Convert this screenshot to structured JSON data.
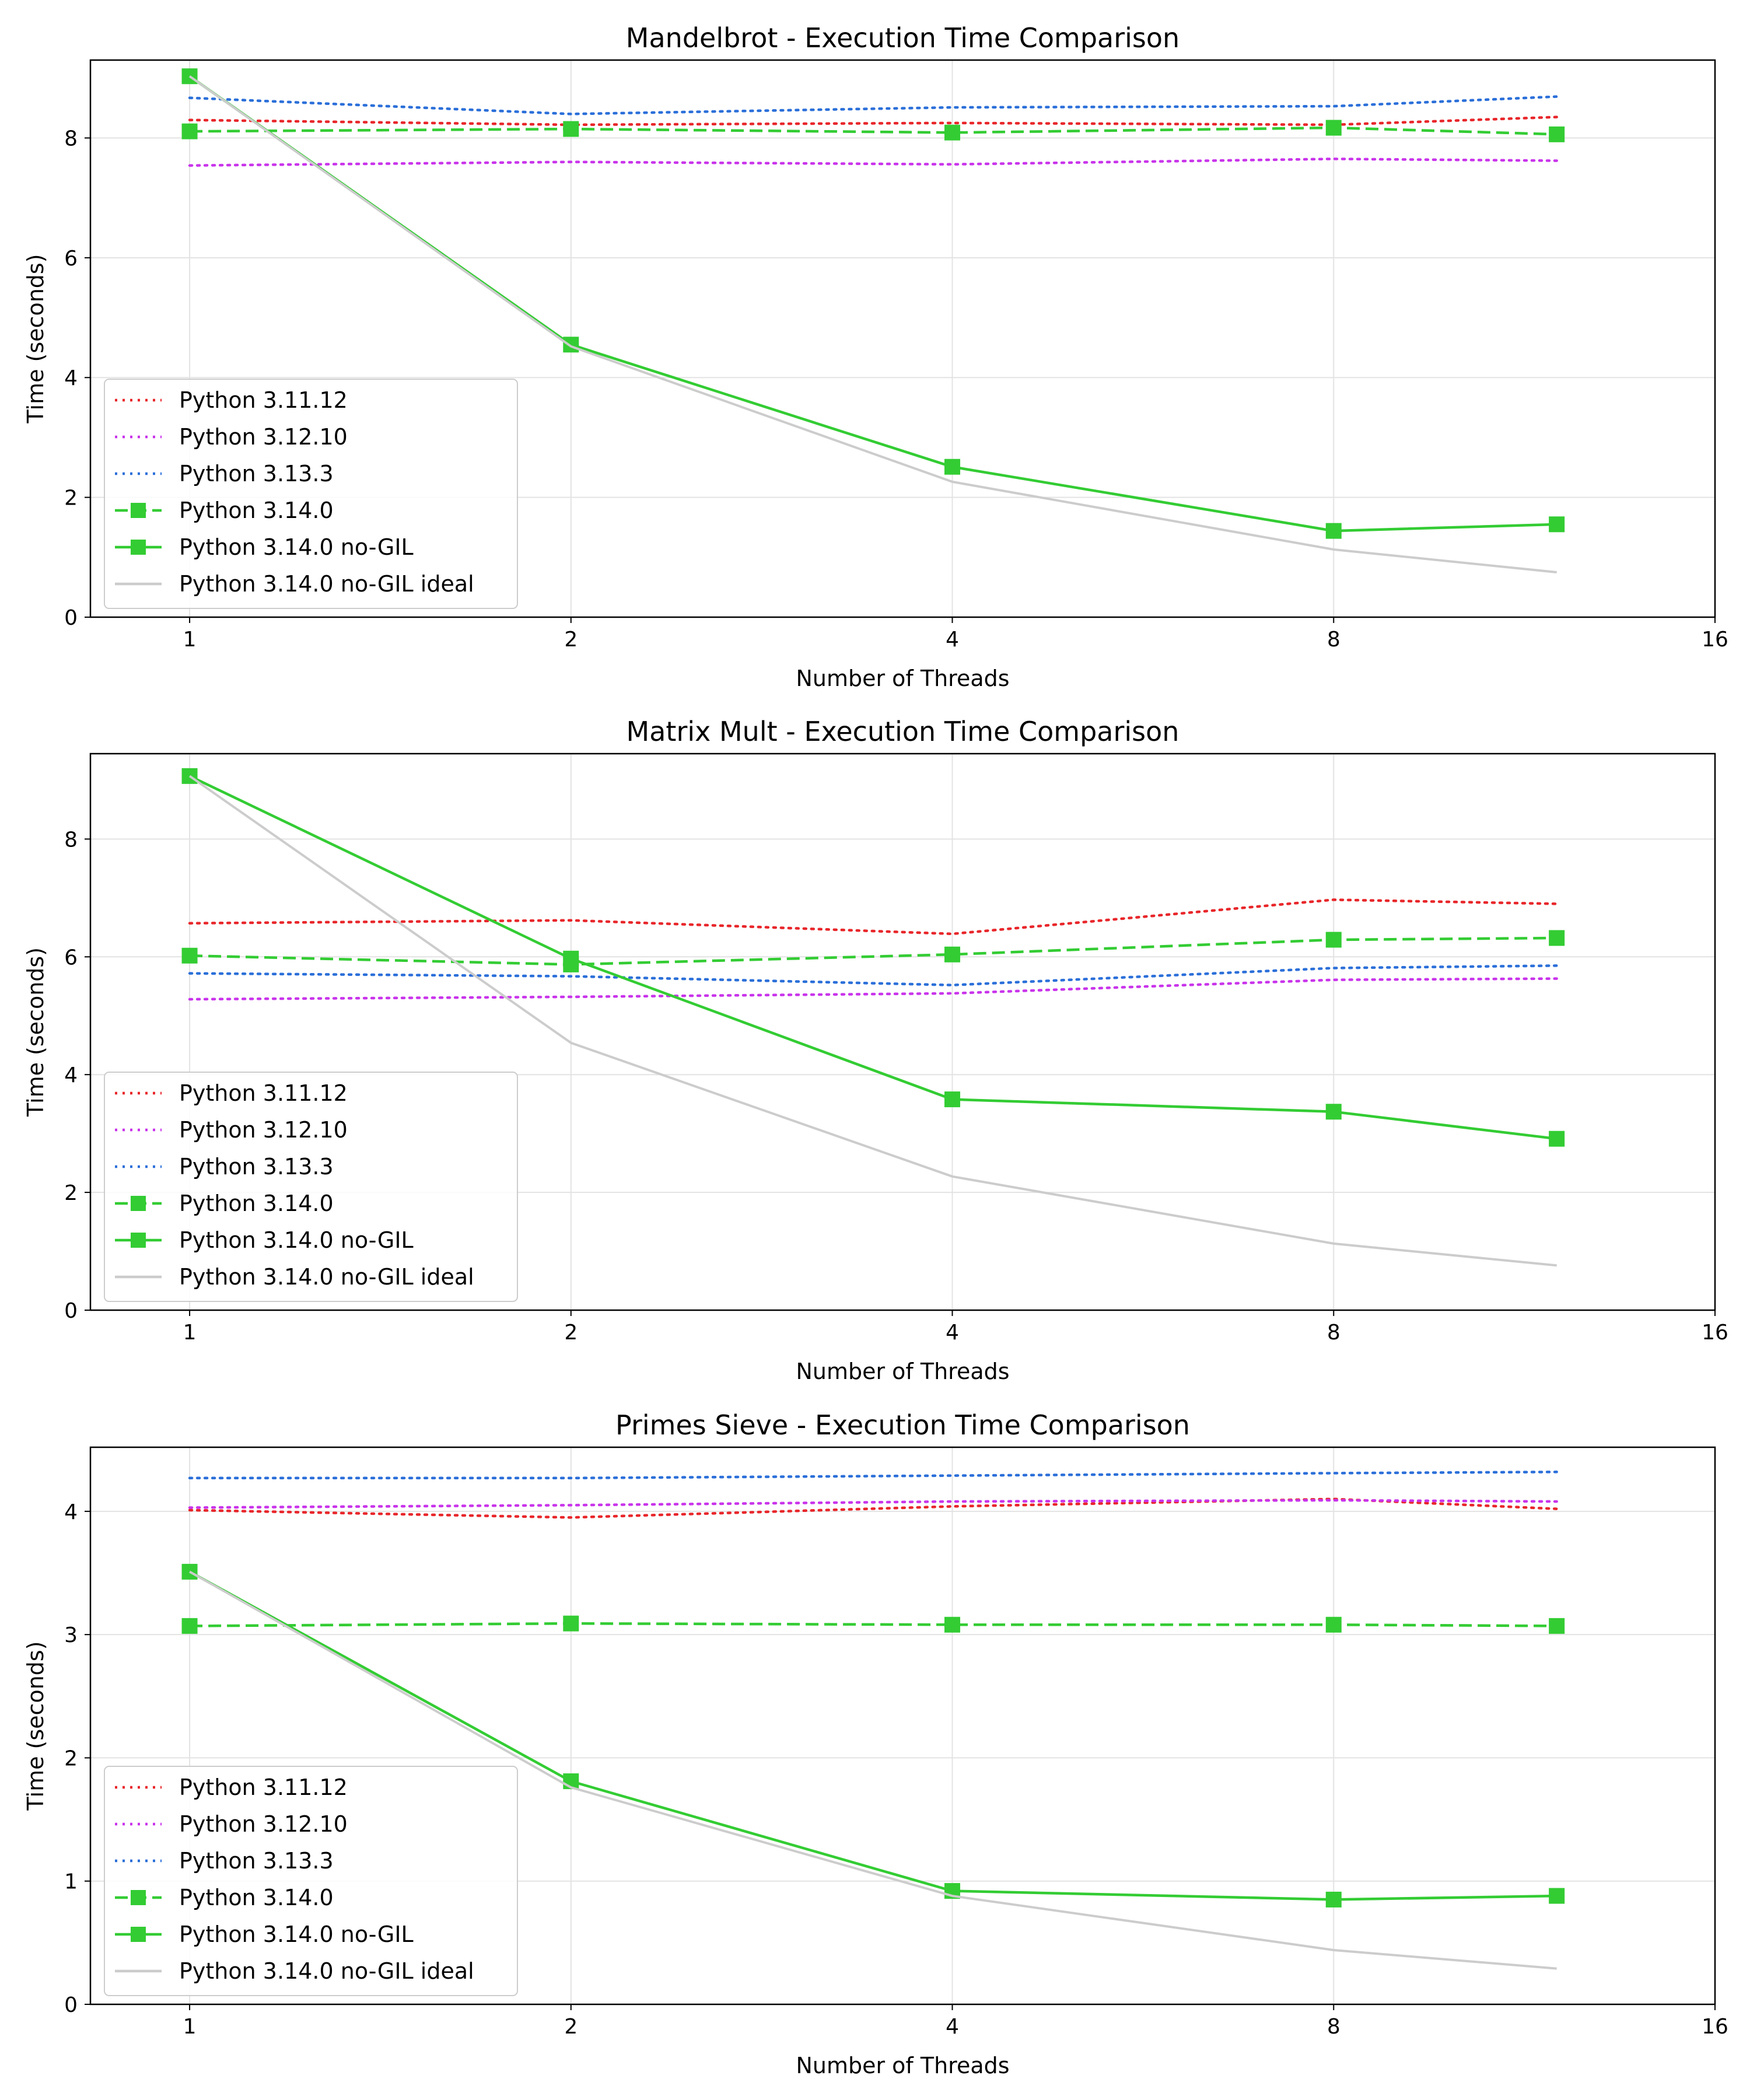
{
  "chart_data": [
    {
      "type": "line",
      "title": "Mandelbrot - Execution Time Comparison",
      "xlabel": "Number of Threads",
      "ylabel": "Time (seconds)",
      "x_scale": "log2",
      "xlim": [
        0.835,
        16
      ],
      "ylim": [
        0,
        9.3
      ],
      "x_ticks": [
        1,
        2,
        4,
        8,
        16
      ],
      "y_ticks": [
        0,
        2,
        4,
        6,
        8
      ],
      "x": [
        1,
        2,
        4,
        8,
        12
      ],
      "grid": true,
      "legend_position": "lower-left",
      "series": [
        {
          "name": "Python 3.11.12",
          "color": "#e8262a",
          "style": "dotted",
          "marker": "none",
          "values": [
            8.3,
            8.22,
            8.25,
            8.22,
            8.35
          ]
        },
        {
          "name": "Python 3.12.10",
          "color": "#c934eb",
          "style": "dotted",
          "marker": "none",
          "values": [
            7.54,
            7.6,
            7.56,
            7.65,
            7.62
          ]
        },
        {
          "name": "Python 3.13.3",
          "color": "#2b6fd9",
          "style": "dotted",
          "marker": "none",
          "values": [
            8.67,
            8.4,
            8.51,
            8.53,
            8.69
          ]
        },
        {
          "name": "Python 3.14.0",
          "color": "#33cc33",
          "style": "dashed",
          "marker": "square",
          "values": [
            8.11,
            8.15,
            8.09,
            8.17,
            8.06
          ]
        },
        {
          "name": "Python 3.14.0 no-GIL",
          "color": "#33cc33",
          "style": "solid",
          "marker": "square",
          "values": [
            9.03,
            4.55,
            2.51,
            1.44,
            1.55
          ]
        },
        {
          "name": "Python 3.14.0 no-GIL ideal",
          "color": "#cccccc",
          "style": "solid",
          "marker": "none",
          "values": [
            9.03,
            4.52,
            2.26,
            1.13,
            0.75
          ]
        }
      ]
    },
    {
      "type": "line",
      "title": "Matrix Mult - Execution Time Comparison",
      "xlabel": "Number of Threads",
      "ylabel": "Time (seconds)",
      "x_scale": "log2",
      "xlim": [
        0.835,
        16
      ],
      "ylim": [
        0,
        9.45
      ],
      "x_ticks": [
        1,
        2,
        4,
        8,
        16
      ],
      "y_ticks": [
        0,
        2,
        4,
        6,
        8
      ],
      "x": [
        1,
        2,
        4,
        8,
        12
      ],
      "grid": true,
      "legend_position": "lower-left",
      "series": [
        {
          "name": "Python 3.11.12",
          "color": "#e8262a",
          "style": "dotted",
          "marker": "none",
          "values": [
            6.57,
            6.62,
            6.39,
            6.97,
            6.9
          ]
        },
        {
          "name": "Python 3.12.10",
          "color": "#c934eb",
          "style": "dotted",
          "marker": "none",
          "values": [
            5.28,
            5.32,
            5.38,
            5.61,
            5.63
          ]
        },
        {
          "name": "Python 3.13.3",
          "color": "#2b6fd9",
          "style": "dotted",
          "marker": "none",
          "values": [
            5.72,
            5.67,
            5.52,
            5.81,
            5.85
          ]
        },
        {
          "name": "Python 3.14.0",
          "color": "#33cc33",
          "style": "dashed",
          "marker": "square",
          "values": [
            6.02,
            5.87,
            6.04,
            6.29,
            6.32
          ]
        },
        {
          "name": "Python 3.14.0 no-GIL",
          "color": "#33cc33",
          "style": "solid",
          "marker": "square",
          "values": [
            9.07,
            5.97,
            3.58,
            3.37,
            2.91
          ]
        },
        {
          "name": "Python 3.14.0 no-GIL ideal",
          "color": "#cccccc",
          "style": "solid",
          "marker": "none",
          "values": [
            9.07,
            4.54,
            2.27,
            1.13,
            0.76
          ]
        }
      ]
    },
    {
      "type": "line",
      "title": "Primes Sieve - Execution Time Comparison",
      "xlabel": "Number of Threads",
      "ylabel": "Time (seconds)",
      "x_scale": "log2",
      "xlim": [
        0.835,
        16
      ],
      "ylim": [
        0,
        4.52
      ],
      "x_ticks": [
        1,
        2,
        4,
        8,
        16
      ],
      "y_ticks": [
        0,
        1,
        2,
        3,
        4
      ],
      "x": [
        1,
        2,
        4,
        8,
        12
      ],
      "grid": true,
      "legend_position": "lower-left",
      "series": [
        {
          "name": "Python 3.11.12",
          "color": "#e8262a",
          "style": "dotted",
          "marker": "none",
          "values": [
            4.01,
            3.95,
            4.04,
            4.1,
            4.02
          ]
        },
        {
          "name": "Python 3.12.10",
          "color": "#c934eb",
          "style": "dotted",
          "marker": "none",
          "values": [
            4.03,
            4.05,
            4.08,
            4.09,
            4.08
          ]
        },
        {
          "name": "Python 3.13.3",
          "color": "#2b6fd9",
          "style": "dotted",
          "marker": "none",
          "values": [
            4.27,
            4.27,
            4.29,
            4.31,
            4.32
          ]
        },
        {
          "name": "Python 3.14.0",
          "color": "#33cc33",
          "style": "dashed",
          "marker": "square",
          "values": [
            3.07,
            3.09,
            3.08,
            3.08,
            3.07
          ]
        },
        {
          "name": "Python 3.14.0 no-GIL",
          "color": "#33cc33",
          "style": "solid",
          "marker": "square",
          "values": [
            3.51,
            1.81,
            0.92,
            0.85,
            0.88
          ]
        },
        {
          "name": "Python 3.14.0 no-GIL ideal",
          "color": "#cccccc",
          "style": "solid",
          "marker": "none",
          "values": [
            3.51,
            1.76,
            0.88,
            0.44,
            0.29
          ]
        }
      ]
    }
  ]
}
